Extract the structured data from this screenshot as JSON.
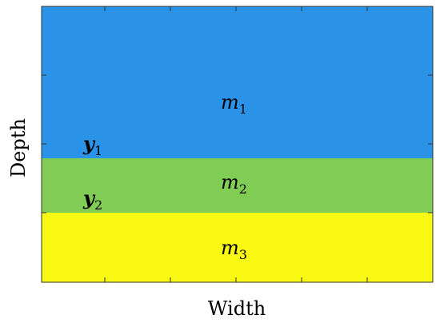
{
  "figure": {
    "x_axis_label": "Width",
    "y_axis_label": "Depth",
    "layers": [
      {
        "id": "layer-1",
        "color": "#2a93e8",
        "symbol": "m",
        "index": "1"
      },
      {
        "id": "layer-2",
        "color": "#80cc55",
        "symbol": "m",
        "index": "2"
      },
      {
        "id": "layer-3",
        "color": "#f8f812",
        "symbol": "m",
        "index": "3"
      }
    ],
    "interfaces": [
      {
        "symbol": "y",
        "index": "1"
      },
      {
        "symbol": "y",
        "index": "2"
      }
    ]
  }
}
